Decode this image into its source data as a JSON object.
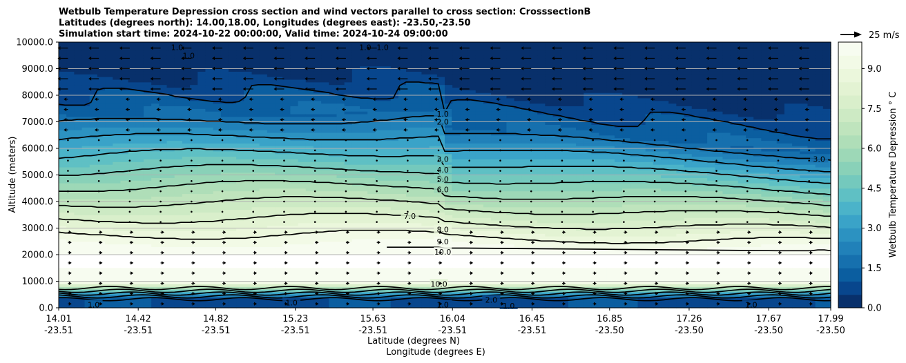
{
  "chart_data": {
    "type": "heatmap",
    "title_lines": [
      "Wetbulb Temperature Depression cross section and wind vectors parallel to cross section: CrosssectionB",
      "Latitudes (degrees north): 14.00,18.00, Longitudes (degrees east): -23.50,-23.50",
      "Simulation start time: 2024-10-22 00:00:00, Valid time: 2024-10-24 09:00:00"
    ],
    "xlabel": "Latitude (degrees N)",
    "xlabel2": "Longitude (degrees E)",
    "ylabel": "Altitude (meters)",
    "x_ticks": [
      {
        "lat": "14.01",
        "lon": "-23.51"
      },
      {
        "lat": "14.42",
        "lon": "-23.51"
      },
      {
        "lat": "14.82",
        "lon": "-23.51"
      },
      {
        "lat": "15.23",
        "lon": "-23.51"
      },
      {
        "lat": "15.63",
        "lon": "-23.51"
      },
      {
        "lat": "16.04",
        "lon": "-23.51"
      },
      {
        "lat": "16.45",
        "lon": "-23.51"
      },
      {
        "lat": "16.85",
        "lon": "-23.50"
      },
      {
        "lat": "17.26",
        "lon": "-23.50"
      },
      {
        "lat": "17.67",
        "lon": "-23.50"
      },
      {
        "lat": "17.99",
        "lon": "-23.50"
      }
    ],
    "x_range": [
      14.01,
      17.99
    ],
    "y_ticks": [
      "0.0",
      "1000.0",
      "2000.0",
      "3000.0",
      "4000.0",
      "5000.0",
      "6000.0",
      "7000.0",
      "8000.0",
      "9000.0",
      "10000.0"
    ],
    "ylim": [
      0,
      10000
    ],
    "grid": "horizontal",
    "colorbar": {
      "label": "Wetbulb Temperature Depression ° C",
      "ticks": [
        "0.0",
        "1.5",
        "3.0",
        "4.5",
        "6.0",
        "7.5",
        "9.0"
      ],
      "range": [
        0,
        10
      ],
      "levels": 20,
      "colors": [
        "#08306b",
        "#08468d",
        "#0b5ea0",
        "#1670ae",
        "#2181b9",
        "#2c92c1",
        "#3aa3c8",
        "#4bb3c9",
        "#5fc0c4",
        "#74c9bd",
        "#89d1b8",
        "#9dd8b7",
        "#afdeb8",
        "#bfe4bd",
        "#cdeac4",
        "#d9efcb",
        "#e3f3d3",
        "#ebf7dc",
        "#f2fae6",
        "#f7fcf0"
      ]
    },
    "quiver_key": {
      "label": "25 m/s",
      "speed": 25
    },
    "contour_labels": [
      {
        "x": 15.99,
        "z": 7300,
        "text": "1.0"
      },
      {
        "x": 15.99,
        "z": 7000,
        "text": "2.0"
      },
      {
        "x": 15.99,
        "z": 5600,
        "text": "3.0"
      },
      {
        "x": 15.99,
        "z": 5200,
        "text": "4.0"
      },
      {
        "x": 15.99,
        "z": 4850,
        "text": "5.0"
      },
      {
        "x": 15.99,
        "z": 4450,
        "text": "6.0"
      },
      {
        "x": 15.82,
        "z": 3450,
        "text": "7.0"
      },
      {
        "x": 15.99,
        "z": 2950,
        "text": "8.0"
      },
      {
        "x": 15.99,
        "z": 2500,
        "text": "9.0"
      },
      {
        "x": 15.99,
        "z": 2100,
        "text": "10.0"
      },
      {
        "x": 14.62,
        "z": 9800,
        "text": "1.0"
      },
      {
        "x": 14.68,
        "z": 9500,
        "text": "1.0"
      },
      {
        "x": 15.59,
        "z": 9800,
        "text": "1.0"
      },
      {
        "x": 15.68,
        "z": 9800,
        "text": "1.0"
      },
      {
        "x": 17.93,
        "z": 5600,
        "text": "3.0"
      },
      {
        "x": 15.97,
        "z": 900,
        "text": "10.0"
      },
      {
        "x": 15.99,
        "z": 120,
        "text": "1.0"
      },
      {
        "x": 16.24,
        "z": 300,
        "text": "2.0"
      },
      {
        "x": 16.33,
        "z": 80,
        "text": "1.0"
      },
      {
        "x": 17.58,
        "z": 120,
        "text": "1.0"
      },
      {
        "x": 14.19,
        "z": 120,
        "text": "1.0"
      },
      {
        "x": 15.21,
        "z": 200,
        "text": "1.0"
      }
    ],
    "missing_band": [
      1500,
      1980
    ]
  }
}
